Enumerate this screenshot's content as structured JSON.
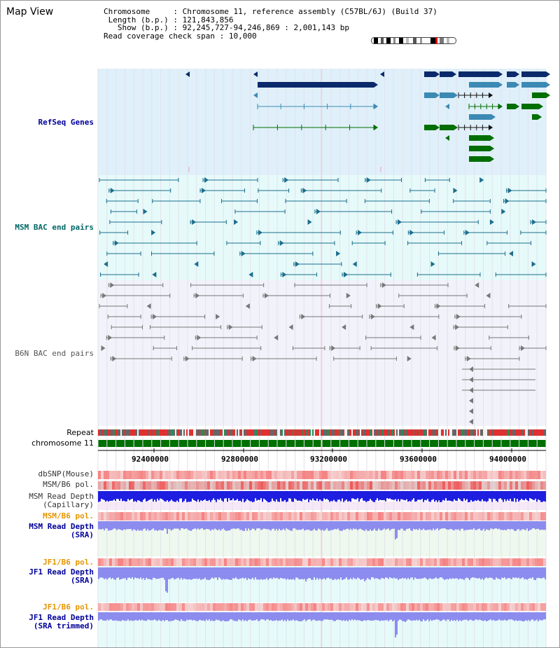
{
  "page": {
    "title": "Map View"
  },
  "info": {
    "chromosome_label": "Chromosome",
    "chromosome_value": "Chromosome 11, reference assembly (C57BL/6J) (Build 37)",
    "length_label": "Length (b.p.)",
    "length_value": "121,843,856",
    "show_label": "Show (b.p.)",
    "show_value": "92,245,727-94,246,869 : 2,001,143 bp",
    "span_label": "Read coverage check span",
    "span_value": "10,000"
  },
  "tracks": {
    "refseq": "RefSeq Genes",
    "msm_bac": "MSM BAC end pairs",
    "b6n_bac": "B6N BAC end pairs",
    "repeat": "Repeat",
    "chromosome": "chromosome 11",
    "dbsnp": "dbSNP(Mouse)",
    "msm_b6_pol": "MSM/B6 pol.",
    "msm_depth_cap": "MSM Read Depth\n(Capillary)",
    "msm_b6_pol2": "MSM/B6 pol.",
    "msm_depth_sra": "MSM Read Depth\n(SRA)",
    "jf1_b6_pol": "JF1/B6 pol.",
    "jf1_depth_sra": "JF1 Read Depth\n(SRA)",
    "jf1_b6_pol2": "JF1/B6 pol.",
    "jf1_depth_trim": "JF1 Read Depth\n(SRA trimmed)"
  },
  "axis": {
    "ticks": [
      "92400000",
      "92800000",
      "93200000",
      "93600000",
      "94000000"
    ]
  },
  "colors": {
    "refseq_bg": "#dff0fa",
    "msm_bg": "#e6fafa",
    "b6n_bg": "#f2f2fa",
    "gene_dark": "#0a2a6b",
    "gene_mid": "#3c8ab4",
    "gene_green": "#006e00",
    "msm_line": "#1a6e8c",
    "b6n_line": "#777777",
    "chrom_green": "#007000",
    "depth_blue": "#2020d0",
    "depth_light": "#8888ee",
    "orange_label": "#e69500",
    "blue_label": "#000099",
    "teal_label": "#006666"
  }
}
